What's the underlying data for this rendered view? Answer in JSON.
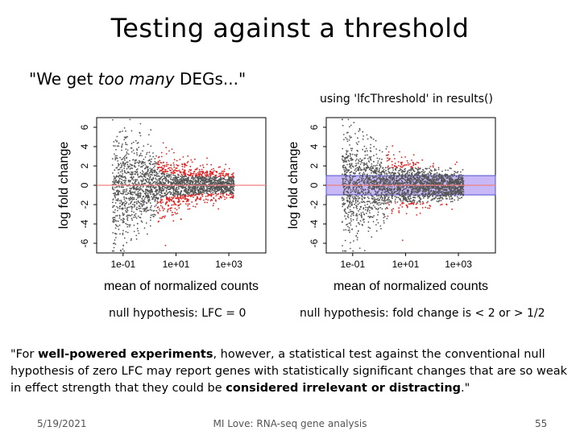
{
  "slide": {
    "title": "Testing against a threshold",
    "quote_pre": "\"We get ",
    "quote_em": "too many",
    "quote_post": " DEGs...\"",
    "threshold_note": "using 'lfcThreshold' in results()",
    "null_left": "null hypothesis: LFC = 0",
    "null_right": "null hypothesis: fold change is < 2 or > 1/2",
    "para": {
      "p1": "\"For ",
      "b1": "well-powered experiments",
      "p2": ", however, a statistical test against the conventional null hypothesis of zero LFC may report genes with statistically significant changes that are so weak in effect strength that they could be ",
      "b2": "considered irrelevant or distracting",
      "p3": ".\""
    },
    "footer": {
      "date": "5/19/2021",
      "center": "MI Love: RNA-seq gene analysis",
      "page": "55"
    }
  },
  "plots": [
    {
      "ylabel": "log fold change",
      "xlabel": "mean of normalized counts",
      "yticks": [
        "-6",
        "-4",
        "-2",
        "0",
        "2",
        "4",
        "6"
      ],
      "xticks": [
        "1e-01",
        "1e+01",
        "1e+03"
      ],
      "threshold_band": false
    },
    {
      "ylabel": "log fold change",
      "xlabel": "mean of normalized counts",
      "yticks": [
        "-6",
        "-4",
        "-2",
        "0",
        "2",
        "4",
        "6"
      ],
      "xticks": [
        "1e-01",
        "1e+01",
        "1e+03"
      ],
      "threshold_band": true
    }
  ],
  "colors": {
    "points_grey": "#555555",
    "points_red": "#e02020",
    "zero_line": "#f08080",
    "band_fill": "#c8b8f8",
    "band_edge": "#5050d0"
  }
}
